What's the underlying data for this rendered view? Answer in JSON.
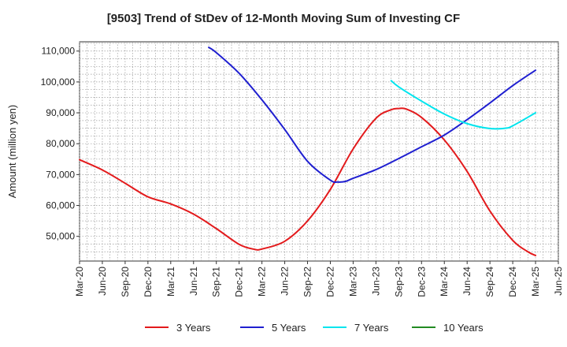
{
  "chart_data": {
    "type": "line",
    "title": "[9503]  Trend of StDev of 12-Month Moving Sum of Investing CF",
    "ylabel": "Amount (million yen)",
    "xlabel": "",
    "x_ticks": [
      "Mar-20",
      "Jun-20",
      "Sep-20",
      "Dec-20",
      "Mar-21",
      "Jun-21",
      "Sep-21",
      "Dec-21",
      "Mar-22",
      "Jun-22",
      "Sep-22",
      "Dec-22",
      "Mar-23",
      "Jun-23",
      "Sep-23",
      "Dec-23",
      "Mar-24",
      "Jun-24",
      "Sep-24",
      "Dec-24",
      "Mar-25",
      "Jun-25"
    ],
    "y_ticks": [
      50000,
      60000,
      70000,
      80000,
      90000,
      100000,
      110000
    ],
    "y_tick_labels": [
      "50,000",
      "60,000",
      "70,000",
      "80,000",
      "90,000",
      "100,000",
      "110,000"
    ],
    "ylim": [
      42000,
      113000
    ],
    "grid": true,
    "legend_position": "bottom",
    "series": [
      {
        "name": "3 Years",
        "color": "#e31a1c",
        "x": [
          "Mar-20",
          "Jun-20",
          "Sep-20",
          "Dec-20",
          "Mar-21",
          "Jun-21",
          "Sep-21",
          "Dec-21",
          "Feb-22",
          "Mar-22",
          "Jun-22",
          "Sep-22",
          "Dec-22",
          "Mar-23",
          "Jun-23",
          "Aug-23",
          "Sep-23",
          "Oct-23",
          "Dec-23",
          "Mar-24",
          "Jun-24",
          "Sep-24",
          "Dec-24",
          "Feb-25",
          "Mar-25"
        ],
        "values": [
          74800,
          71500,
          67200,
          62800,
          60500,
          57200,
          52500,
          47400,
          45800,
          45900,
          48400,
          55000,
          65200,
          78300,
          88200,
          91000,
          91400,
          91200,
          88500,
          81200,
          71000,
          58200,
          48700,
          45000,
          43800
        ]
      },
      {
        "name": "5 Years",
        "color": "#1f1fd0",
        "x": [
          "Aug-21",
          "Sep-21",
          "Dec-21",
          "Mar-22",
          "Jun-22",
          "Sep-22",
          "Dec-22",
          "Jan-23",
          "Feb-23",
          "Mar-23",
          "Jun-23",
          "Sep-23",
          "Dec-23",
          "Mar-24",
          "Jun-24",
          "Sep-24",
          "Dec-24",
          "Mar-25"
        ],
        "values": [
          111200,
          109500,
          102800,
          94200,
          84600,
          74300,
          68200,
          67600,
          67800,
          68800,
          71600,
          75200,
          79000,
          82800,
          87800,
          93200,
          98800,
          103800
        ]
      },
      {
        "name": "7 Years",
        "color": "#00e5ee",
        "x": [
          "Aug-23",
          "Sep-23",
          "Dec-23",
          "Mar-24",
          "Jun-24",
          "Sep-24",
          "Nov-24",
          "Dec-24",
          "Mar-25"
        ],
        "values": [
          100400,
          98400,
          93800,
          89600,
          86500,
          84900,
          85000,
          85800,
          90000
        ]
      },
      {
        "name": "10 Years",
        "color": "#228b22",
        "x": [],
        "values": []
      }
    ]
  }
}
